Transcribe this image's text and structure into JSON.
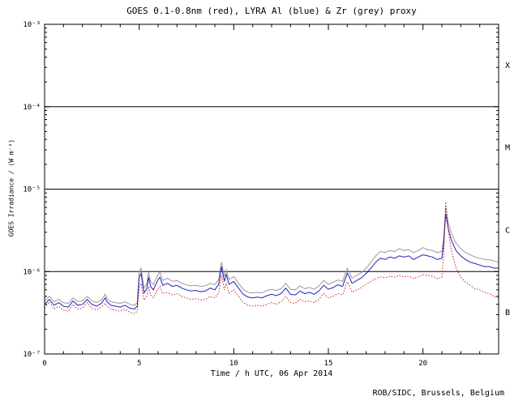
{
  "footer": {
    "credit": "ROB/SIDC, Brussels, Belgium"
  },
  "chart_data": {
    "type": "line",
    "title": "GOES 0.1-0.8nm (red), LYRA Al (blue) & Zr (grey) proxy",
    "xlabel": "Time / h UTC, 06 Apr 2014",
    "ylabel": "GOES Irradiance / (W m⁻²)",
    "xlim": [
      0,
      24
    ],
    "ylim": [
      1e-07,
      0.001
    ],
    "yscale": "log",
    "grid": false,
    "legend_position": "in-title",
    "x_major_ticks": [
      0,
      5,
      10,
      15,
      20
    ],
    "x_minor_step": 1,
    "y_ticks": [
      {
        "value": 1e-07,
        "label": "10⁻⁷"
      },
      {
        "value": 1e-06,
        "label": "10⁻⁶"
      },
      {
        "value": 1e-05,
        "label": "10⁻⁵"
      },
      {
        "value": 0.0001,
        "label": "10⁻⁴"
      },
      {
        "value": 0.001,
        "label": "10⁻³"
      }
    ],
    "hlines": [
      1e-06,
      1e-05,
      0.0001
    ],
    "flare_class_labels": [
      {
        "label": "X",
        "y": 0.000316
      },
      {
        "label": "M",
        "y": 3.16e-05
      },
      {
        "label": "C",
        "y": 3.16e-06
      },
      {
        "label": "B",
        "y": 3.16e-07
      }
    ],
    "x": [
      0,
      0.25,
      0.5,
      0.75,
      1,
      1.25,
      1.5,
      1.75,
      2,
      2.25,
      2.5,
      2.75,
      3,
      3.2,
      3.3,
      3.5,
      3.75,
      4,
      4.25,
      4.5,
      4.75,
      4.9,
      5,
      5.1,
      5.25,
      5.4,
      5.5,
      5.6,
      5.75,
      6,
      6.1,
      6.25,
      6.5,
      6.75,
      7,
      7.25,
      7.5,
      7.75,
      8,
      8.25,
      8.5,
      8.75,
      9,
      9.2,
      9.35,
      9.5,
      9.6,
      9.75,
      10,
      10.25,
      10.5,
      10.75,
      11,
      11.25,
      11.5,
      11.75,
      12,
      12.25,
      12.5,
      12.75,
      13,
      13.25,
      13.5,
      13.75,
      14,
      14.25,
      14.5,
      14.75,
      15,
      15.25,
      15.5,
      15.75,
      16,
      16.1,
      16.25,
      16.5,
      16.75,
      17,
      17.25,
      17.5,
      17.75,
      18,
      18.25,
      18.5,
      18.75,
      19,
      19.25,
      19.5,
      19.75,
      20,
      20.25,
      20.5,
      20.75,
      21,
      21.1,
      21.2,
      21.35,
      21.5,
      21.75,
      22,
      22.25,
      22.5,
      22.75,
      23,
      23.25,
      23.5,
      23.75,
      24
    ],
    "series": [
      {
        "name": "GOES 0.1-0.8nm",
        "color": "#cc2020",
        "style": "dotted",
        "values": [
          3.6e-07,
          4.3e-07,
          3.5e-07,
          3.8e-07,
          3.4e-07,
          3.3e-07,
          4e-07,
          3.5e-07,
          3.6e-07,
          4.2e-07,
          3.6e-07,
          3.4e-07,
          3.7e-07,
          4.1e-07,
          3.8e-07,
          3.5e-07,
          3.4e-07,
          3.3e-07,
          3.5e-07,
          3.2e-07,
          3.1e-07,
          3.3e-07,
          6.5e-07,
          7.2e-07,
          4.5e-07,
          5e-07,
          6.6e-07,
          5.2e-07,
          4.8e-07,
          6.2e-07,
          6.6e-07,
          5.4e-07,
          5.6e-07,
          5.2e-07,
          5.4e-07,
          5e-07,
          4.8e-07,
          4.6e-07,
          4.7e-07,
          4.5e-07,
          4.6e-07,
          5e-07,
          4.8e-07,
          5.5e-07,
          9e-07,
          6e-07,
          7.2e-07,
          5.5e-07,
          6e-07,
          5e-07,
          4.2e-07,
          3.9e-07,
          3.8e-07,
          3.9e-07,
          3.8e-07,
          4e-07,
          4.2e-07,
          4e-07,
          4.3e-07,
          5e-07,
          4.2e-07,
          4.1e-07,
          4.6e-07,
          4.3e-07,
          4.4e-07,
          4.2e-07,
          4.6e-07,
          5.4e-07,
          4.8e-07,
          5e-07,
          5.4e-07,
          5.2e-07,
          7.5e-07,
          6.8e-07,
          5.6e-07,
          6e-07,
          6.4e-07,
          7e-07,
          7.6e-07,
          8.2e-07,
          8.6e-07,
          8.4e-07,
          8.8e-07,
          8.5e-07,
          9e-07,
          8.6e-07,
          8.8e-07,
          8.2e-07,
          8.6e-07,
          9.2e-07,
          9e-07,
          8.8e-07,
          8.2e-07,
          8.5e-07,
          1.6e-06,
          7e-06,
          3e-06,
          1.8e-06,
          1.1e-06,
          8.5e-07,
          7.5e-07,
          6.8e-07,
          6.2e-07,
          6e-07,
          5.6e-07,
          5.4e-07,
          5e-07,
          4.8e-07
        ]
      },
      {
        "name": "LYRA Al",
        "color": "#2020bb",
        "style": "solid",
        "values": [
          4e-07,
          4.6e-07,
          3.9e-07,
          4.2e-07,
          3.8e-07,
          3.7e-07,
          4.4e-07,
          3.9e-07,
          4e-07,
          4.6e-07,
          4e-07,
          3.8e-07,
          4.1e-07,
          4.8e-07,
          4.3e-07,
          3.9e-07,
          3.8e-07,
          3.7e-07,
          3.9e-07,
          3.6e-07,
          3.5e-07,
          3.8e-07,
          8.5e-07,
          9.5e-07,
          5.5e-07,
          6.2e-07,
          8.5e-07,
          6.6e-07,
          6e-07,
          8e-07,
          8.5e-07,
          6.8e-07,
          7.2e-07,
          6.6e-07,
          6.8e-07,
          6.3e-07,
          6e-07,
          5.8e-07,
          5.9e-07,
          5.7e-07,
          5.8e-07,
          6.3e-07,
          6e-07,
          7e-07,
          1.15e-06,
          7.6e-07,
          9.2e-07,
          7e-07,
          7.6e-07,
          6.3e-07,
          5.3e-07,
          4.9e-07,
          4.8e-07,
          4.9e-07,
          4.8e-07,
          5.1e-07,
          5.3e-07,
          5.1e-07,
          5.4e-07,
          6.3e-07,
          5.3e-07,
          5.2e-07,
          5.8e-07,
          5.4e-07,
          5.6e-07,
          5.3e-07,
          5.8e-07,
          6.8e-07,
          6.1e-07,
          6.4e-07,
          6.9e-07,
          6.6e-07,
          9.6e-07,
          8.7e-07,
          7.2e-07,
          7.8e-07,
          8.4e-07,
          9.5e-07,
          1.1e-06,
          1.3e-06,
          1.45e-06,
          1.4e-06,
          1.5e-06,
          1.45e-06,
          1.55e-06,
          1.5e-06,
          1.55e-06,
          1.4e-06,
          1.5e-06,
          1.6e-06,
          1.55e-06,
          1.5e-06,
          1.4e-06,
          1.45e-06,
          2.2e-06,
          5e-06,
          3.2e-06,
          2.4e-06,
          1.8e-06,
          1.55e-06,
          1.4e-06,
          1.3e-06,
          1.25e-06,
          1.2e-06,
          1.15e-06,
          1.15e-06,
          1.1e-06,
          1.1e-06
        ]
      },
      {
        "name": "LYRA Zr",
        "color": "#9a9a9a",
        "style": "solid",
        "values": [
          4.4e-07,
          5e-07,
          4.3e-07,
          4.6e-07,
          4.2e-07,
          4.1e-07,
          4.8e-07,
          4.3e-07,
          4.4e-07,
          5e-07,
          4.4e-07,
          4.2e-07,
          4.5e-07,
          5.3e-07,
          4.7e-07,
          4.3e-07,
          4.2e-07,
          4.1e-07,
          4.3e-07,
          4e-07,
          3.9e-07,
          4.2e-07,
          1e-06,
          1.1e-06,
          6.3e-07,
          7.1e-07,
          9.8e-07,
          7.6e-07,
          6.9e-07,
          9.2e-07,
          9.8e-07,
          7.8e-07,
          8.3e-07,
          7.6e-07,
          7.8e-07,
          7.2e-07,
          6.9e-07,
          6.7e-07,
          6.8e-07,
          6.6e-07,
          6.7e-07,
          7.2e-07,
          6.9e-07,
          8e-07,
          1.3e-06,
          8.7e-07,
          1.05e-06,
          8e-07,
          8.7e-07,
          7.2e-07,
          6.1e-07,
          5.6e-07,
          5.5e-07,
          5.6e-07,
          5.5e-07,
          5.9e-07,
          6.1e-07,
          5.9e-07,
          6.2e-07,
          7.2e-07,
          6.1e-07,
          6e-07,
          6.7e-07,
          6.2e-07,
          6.4e-07,
          6.1e-07,
          6.7e-07,
          7.8e-07,
          7e-07,
          7.4e-07,
          7.9e-07,
          7.6e-07,
          1.1e-06,
          1e-06,
          8.3e-07,
          9e-07,
          9.7e-07,
          1.1e-06,
          1.3e-06,
          1.55e-06,
          1.75e-06,
          1.7e-06,
          1.8e-06,
          1.75e-06,
          1.9e-06,
          1.8e-06,
          1.85e-06,
          1.7e-06,
          1.8e-06,
          1.95e-06,
          1.85e-06,
          1.8e-06,
          1.7e-06,
          1.75e-06,
          2.6e-06,
          6e-06,
          3.8e-06,
          2.9e-06,
          2.2e-06,
          1.9e-06,
          1.7e-06,
          1.6e-06,
          1.5e-06,
          1.45e-06,
          1.4e-06,
          1.4e-06,
          1.35e-06,
          1.3e-06
        ]
      }
    ]
  }
}
